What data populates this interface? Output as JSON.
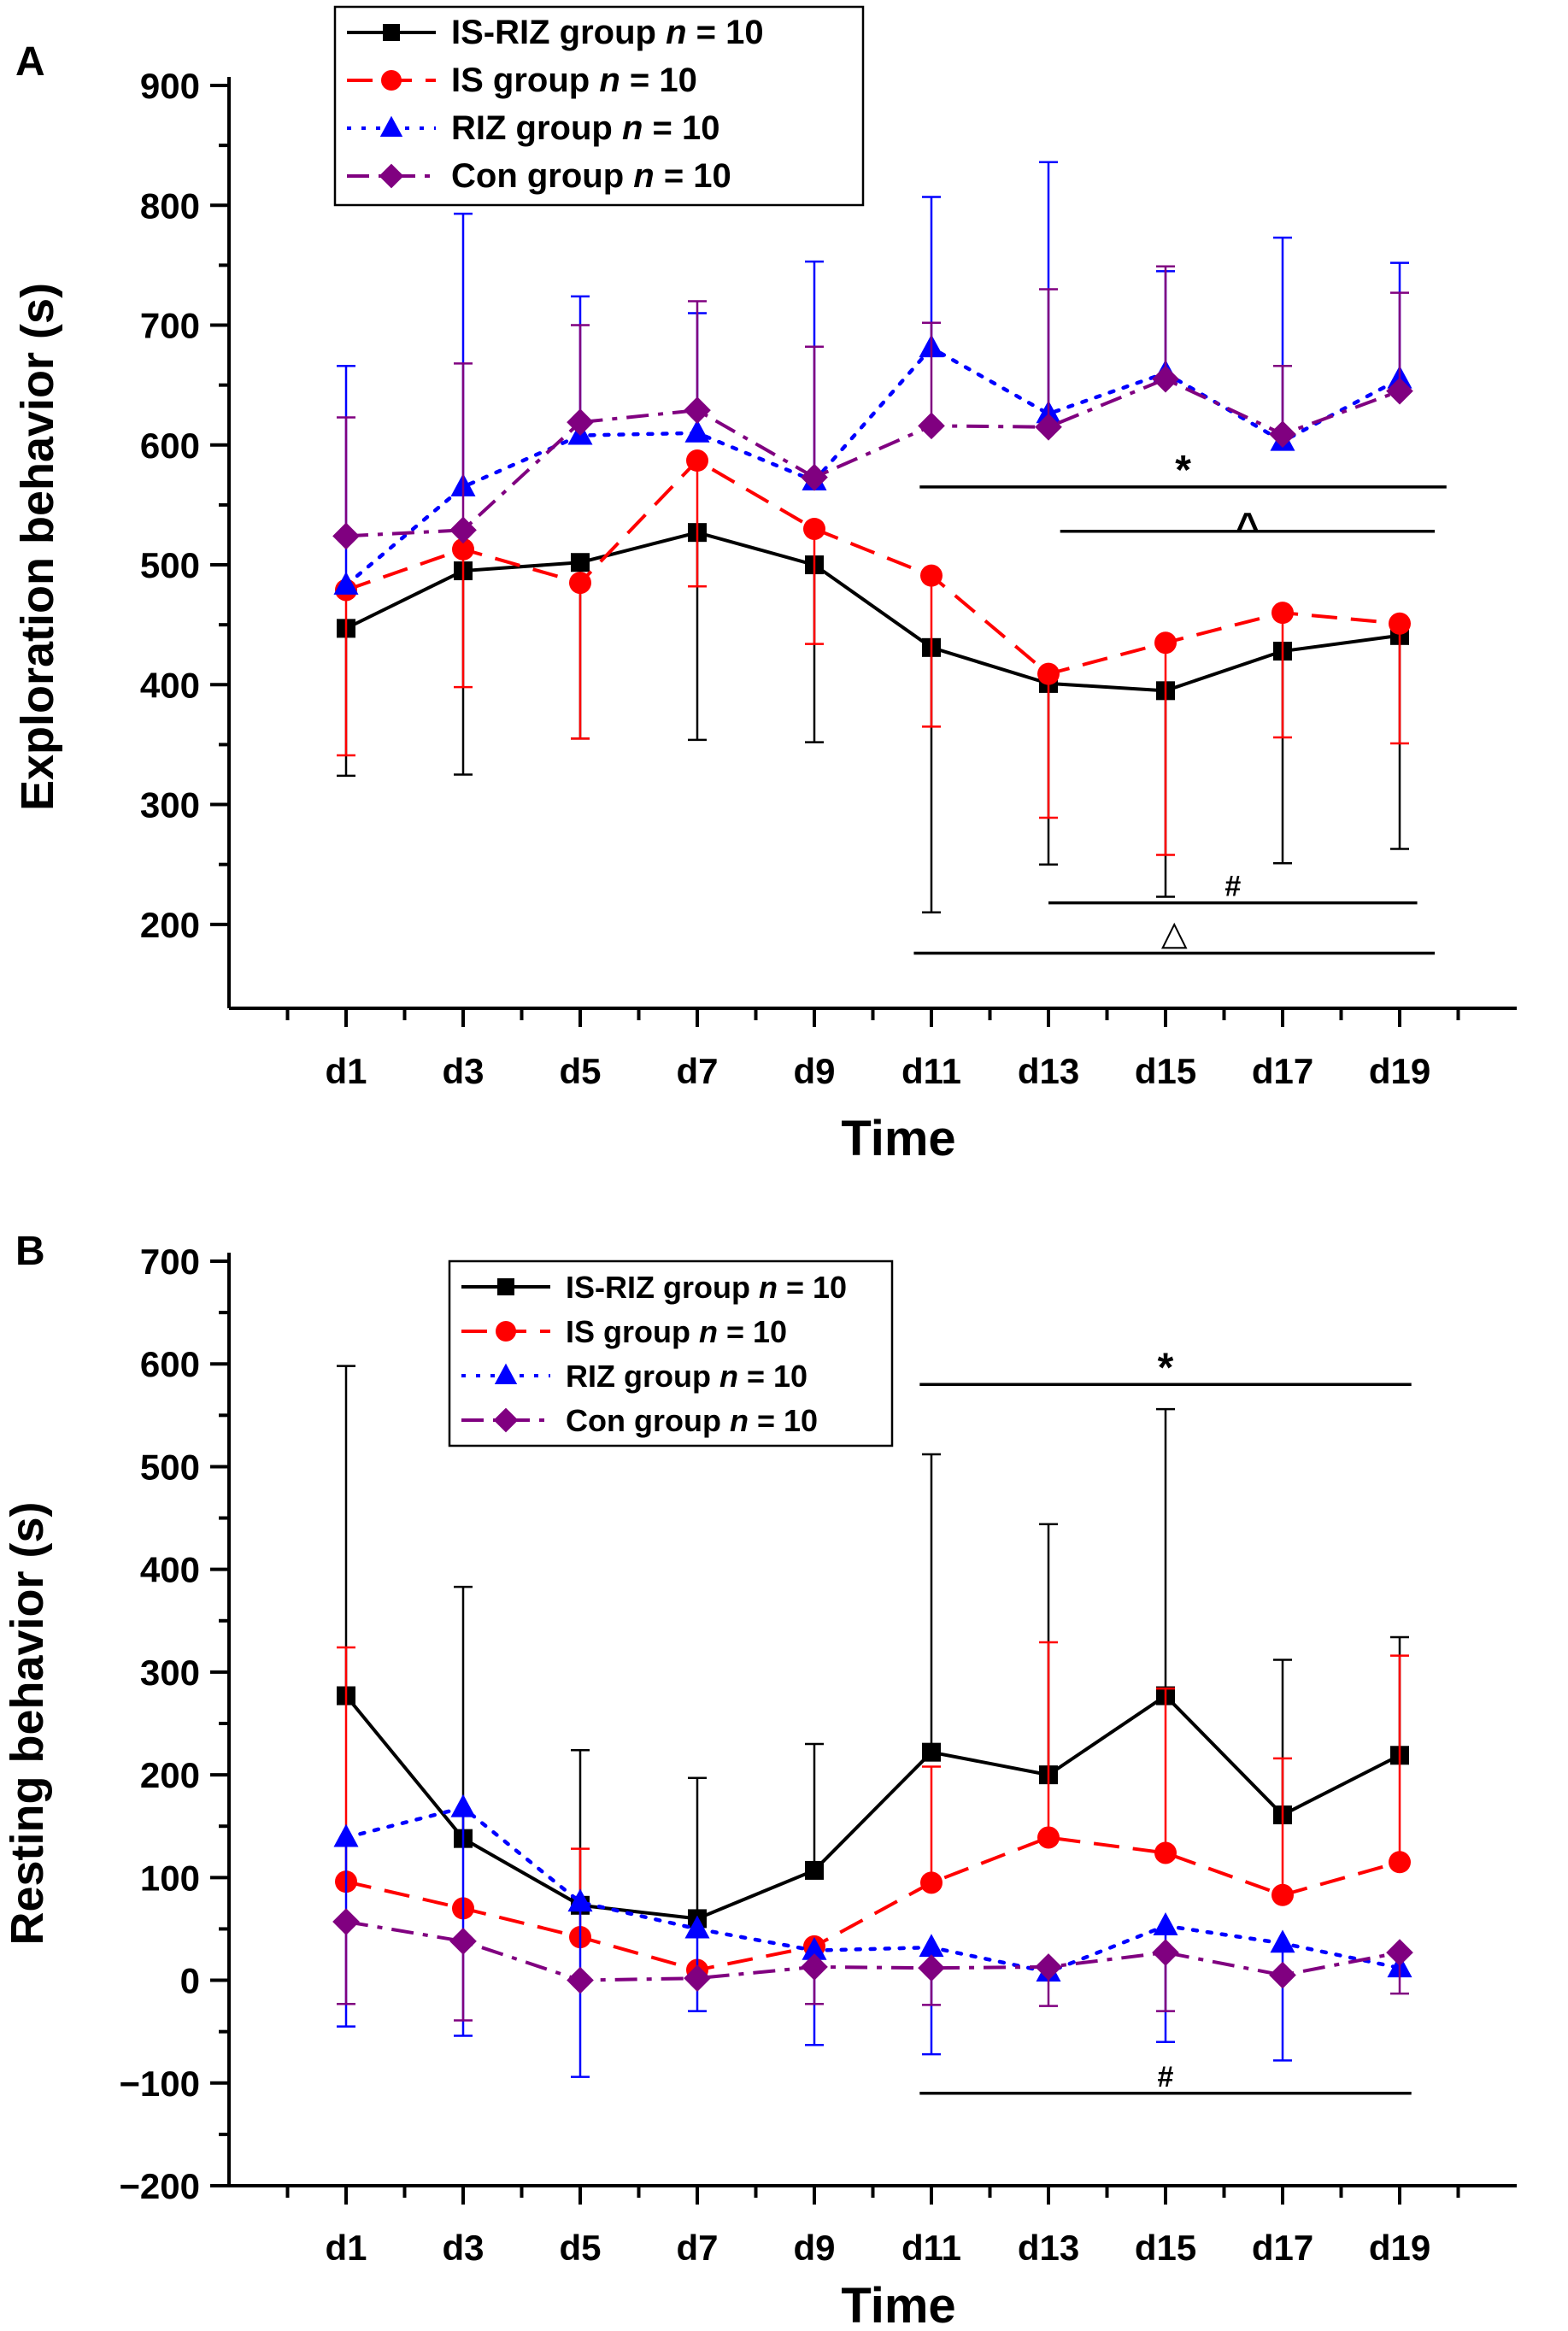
{
  "chart_data": [
    {
      "panel_label": "A",
      "type": "line",
      "xlabel": "Time",
      "ylabel": "Exploration behavior (s)",
      "ylim": [
        130,
        900
      ],
      "y_ticks": [
        200,
        300,
        400,
        500,
        600,
        700,
        800,
        900
      ],
      "categories": [
        "d1",
        "d3",
        "d5",
        "d7",
        "d9",
        "d11",
        "d13",
        "d15",
        "d17",
        "d19"
      ],
      "legend": {
        "position": "top-left",
        "entries": [
          {
            "prefix": "IS-RIZ group ",
            "n_label": "n",
            "suffix": " = 10"
          },
          {
            "prefix": "IS group ",
            "n_label": "n",
            "suffix": " = 10"
          },
          {
            "prefix": "RIZ group ",
            "n_label": "n",
            "suffix": " = 10"
          },
          {
            "prefix": "Con group ",
            "n_label": "n",
            "suffix": " = 10"
          }
        ]
      },
      "series": [
        {
          "color": "#000000",
          "dash": "solid",
          "marker": "square",
          "values": [
            447,
            495,
            502,
            527,
            500,
            431,
            401,
            395,
            428,
            441
          ],
          "err_low": [
            123,
            170,
            147,
            173,
            148,
            221,
            151,
            172,
            177,
            178
          ],
          "err_high": [
            0,
            0,
            0,
            0,
            0,
            0,
            0,
            0,
            0,
            0
          ]
        },
        {
          "color": "#ff0000",
          "dash": "dashed",
          "marker": "circle",
          "values": [
            479,
            513,
            485,
            587,
            530,
            491,
            409,
            435,
            460,
            451
          ],
          "err_low": [
            138,
            115,
            130,
            105,
            96,
            126,
            120,
            177,
            104,
            100
          ],
          "err_high": [
            0,
            0,
            0,
            0,
            0,
            0,
            0,
            0,
            0,
            0
          ]
        },
        {
          "color": "#0000ff",
          "dash": "dotted",
          "marker": "triangle",
          "values": [
            483,
            565,
            608,
            610,
            570,
            681,
            626,
            660,
            603,
            655
          ],
          "err_low": [
            0,
            0,
            0,
            0,
            0,
            0,
            0,
            0,
            0,
            0
          ],
          "err_high": [
            183,
            228,
            116,
            100,
            183,
            126,
            210,
            85,
            170,
            97
          ]
        },
        {
          "color": "#800080",
          "dash": "dashdot",
          "marker": "diamond",
          "values": [
            524,
            529,
            619,
            629,
            573,
            616,
            615,
            655,
            609,
            645
          ],
          "err_low": [
            0,
            0,
            0,
            0,
            0,
            0,
            0,
            0,
            0,
            0
          ],
          "err_high": [
            99,
            139,
            81,
            91,
            109,
            86,
            115,
            94,
            57,
            82
          ]
        }
      ],
      "annotations": [
        {
          "symbol": "*",
          "y_line": 565,
          "x_from": 10.8,
          "x_to": 19.8
        },
        {
          "symbol": "^",
          "y_line": 528,
          "x_from": 13.2,
          "x_to": 19.6
        },
        {
          "symbol": "#",
          "y_line": 218,
          "x_from": 13.0,
          "x_to": 19.3
        },
        {
          "symbol": "△",
          "y_line": 176,
          "x_from": 10.7,
          "x_to": 19.6
        }
      ]
    },
    {
      "panel_label": "B",
      "type": "line",
      "xlabel": "Time",
      "ylabel": "Resting behavior (s)",
      "ylim": [
        -200,
        700
      ],
      "y_ticks": [
        -200,
        -100,
        0,
        100,
        200,
        300,
        400,
        500,
        600,
        700
      ],
      "categories": [
        "d1",
        "d3",
        "d5",
        "d7",
        "d9",
        "d11",
        "d13",
        "d15",
        "d17",
        "d19"
      ],
      "legend": {
        "position": "top-center",
        "entries": [
          {
            "prefix": "IS-RIZ group ",
            "n_label": "n",
            "suffix": " = 10"
          },
          {
            "prefix": "IS group ",
            "n_label": "n",
            "suffix": " = 10"
          },
          {
            "prefix": "RIZ group ",
            "n_label": "n",
            "suffix": " = 10"
          },
          {
            "prefix": "Con group ",
            "n_label": "n",
            "suffix": " = 10"
          }
        ]
      },
      "series": [
        {
          "color": "#000000",
          "dash": "solid",
          "marker": "square",
          "values": [
            277,
            138,
            73,
            60,
            107,
            222,
            200,
            277,
            161,
            219
          ],
          "err_low": [
            0,
            0,
            0,
            0,
            0,
            0,
            0,
            0,
            0,
            0
          ],
          "err_high": [
            321,
            245,
            151,
            137,
            123,
            290,
            244,
            279,
            151,
            115
          ]
        },
        {
          "color": "#ff0000",
          "dash": "dashed",
          "marker": "circle",
          "values": [
            96,
            70,
            42,
            10,
            33,
            95,
            139,
            124,
            83,
            115
          ],
          "err_low": [
            0,
            0,
            0,
            0,
            0,
            0,
            0,
            0,
            0,
            0
          ],
          "err_high": [
            228,
            0,
            86,
            0,
            0,
            113,
            190,
            160,
            133,
            201
          ]
        },
        {
          "color": "#0000ff",
          "dash": "dotted",
          "marker": "triangle",
          "values": [
            139,
            168,
            76,
            50,
            29,
            32,
            8,
            53,
            36,
            12
          ],
          "err_low": [
            184,
            222,
            170,
            80,
            92,
            104,
            0,
            113,
            114,
            0
          ],
          "err_high": [
            0,
            0,
            0,
            0,
            0,
            0,
            0,
            0,
            0,
            0
          ]
        },
        {
          "color": "#800080",
          "dash": "dashdot",
          "marker": "diamond",
          "values": [
            57,
            38,
            0,
            2,
            13,
            12,
            13,
            27,
            5,
            27
          ],
          "err_low": [
            80,
            77,
            0,
            0,
            36,
            36,
            38,
            57,
            0,
            40
          ],
          "err_high": [
            0,
            0,
            0,
            0,
            0,
            0,
            0,
            0,
            0,
            0
          ]
        }
      ],
      "annotations": [
        {
          "symbol": "*",
          "y_line": 580,
          "x_from": 10.8,
          "x_to": 19.2
        },
        {
          "symbol": "#",
          "y_line": -110,
          "x_from": 10.8,
          "x_to": 19.2
        }
      ]
    }
  ]
}
